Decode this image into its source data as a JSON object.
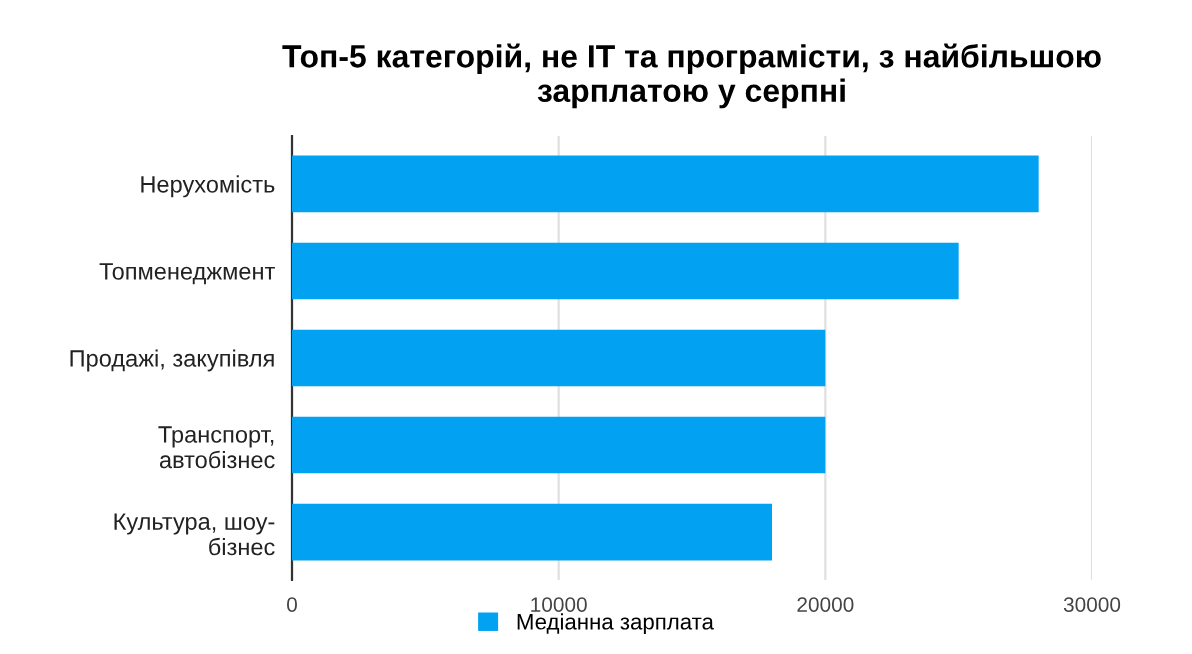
{
  "chart_data": {
    "type": "bar",
    "orientation": "horizontal",
    "title": "Топ-5 категорій, не IT та програмісти, з найбільшою зарплатою у серпні",
    "categories": [
      "Нерухомість",
      "Топменеджмент",
      "Продажі, закупівля",
      "Транспорт, автобізнес",
      "Культура, шоу-бізнес"
    ],
    "series": [
      {
        "name": "Медіанна зарплата",
        "color": "#03a1f1",
        "values": [
          28000,
          25000,
          20000,
          20000,
          18000
        ]
      }
    ],
    "xlim": [
      0,
      30000
    ],
    "xticks": [
      0,
      10000,
      20000,
      30000
    ],
    "grid": "x",
    "legend": "bottom"
  }
}
